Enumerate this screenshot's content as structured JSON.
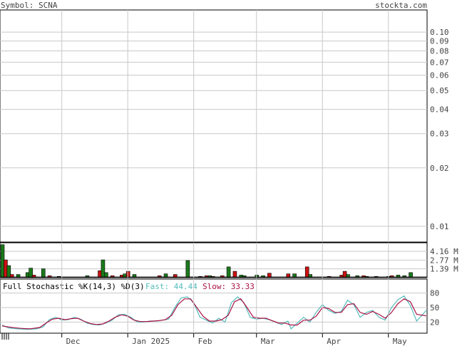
{
  "header": {
    "symbol_label": "Symbol: SCNA",
    "site": "stockta.com"
  },
  "colors": {
    "text": "#444444",
    "grid": "#c8c8c8",
    "frame": "#000000",
    "up_volume": "#1a7a1a",
    "down_volume": "#cc1111",
    "fast_line": "#55bbbb",
    "slow_line": "#aa1144",
    "volume_hline": "#333333"
  },
  "chart_data": [
    {
      "type": "line",
      "panel": "price",
      "scale": "log",
      "ylim": [
        0.0083,
        0.13
      ],
      "y_ticks": [
        "0.10",
        "0.09",
        "0.08",
        "0.07",
        "0.06",
        "0.05",
        "0.04",
        "0.03",
        "0.02",
        "0.01"
      ],
      "y_tick_values": [
        0.1,
        0.09,
        0.08,
        0.07,
        0.06,
        0.05,
        0.04,
        0.03,
        0.02,
        0.01
      ],
      "series": []
    },
    {
      "type": "bar",
      "panel": "volume",
      "y_ticks": [
        "4.16 M",
        "2.77 M",
        "1.39 M"
      ],
      "y_tick_values": [
        4.16,
        2.77,
        1.39
      ],
      "ylim": [
        0,
        5.5
      ],
      "bars": [
        {
          "d": 0,
          "v": 5.2,
          "c": "up"
        },
        {
          "d": 1,
          "v": 2.8,
          "c": "down"
        },
        {
          "d": 2,
          "v": 1.9,
          "c": "up"
        },
        {
          "d": 3,
          "v": 0.5,
          "c": "down"
        },
        {
          "d": 5,
          "v": 0.5,
          "c": "up"
        },
        {
          "d": 8,
          "v": 0.8,
          "c": "up"
        },
        {
          "d": 9,
          "v": 1.5,
          "c": "up"
        },
        {
          "d": 10,
          "v": 0.4,
          "c": "down"
        },
        {
          "d": 13,
          "v": 1.4,
          "c": "up"
        },
        {
          "d": 15,
          "v": 0.3,
          "c": "down"
        },
        {
          "d": 18,
          "v": 0.2,
          "c": "up"
        },
        {
          "d": 27,
          "v": 0.3,
          "c": "up"
        },
        {
          "d": 31,
          "v": 1.1,
          "c": "down"
        },
        {
          "d": 32,
          "v": 2.8,
          "c": "up"
        },
        {
          "d": 33,
          "v": 0.8,
          "c": "up"
        },
        {
          "d": 35,
          "v": 0.3,
          "c": "down"
        },
        {
          "d": 38,
          "v": 0.4,
          "c": "down"
        },
        {
          "d": 39,
          "v": 0.6,
          "c": "up"
        },
        {
          "d": 40,
          "v": 1.0,
          "c": "down"
        },
        {
          "d": 42,
          "v": 0.5,
          "c": "up"
        },
        {
          "d": 50,
          "v": 0.3,
          "c": "down"
        },
        {
          "d": 52,
          "v": 0.6,
          "c": "up"
        },
        {
          "d": 55,
          "v": 0.5,
          "c": "down"
        },
        {
          "d": 59,
          "v": 2.7,
          "c": "up"
        },
        {
          "d": 63,
          "v": 0.2,
          "c": "down"
        },
        {
          "d": 65,
          "v": 0.3,
          "c": "down"
        },
        {
          "d": 66,
          "v": 0.3,
          "c": "up"
        },
        {
          "d": 67,
          "v": 0.2,
          "c": "down"
        },
        {
          "d": 70,
          "v": 0.3,
          "c": "down"
        },
        {
          "d": 72,
          "v": 1.7,
          "c": "up"
        },
        {
          "d": 74,
          "v": 1.0,
          "c": "down"
        },
        {
          "d": 76,
          "v": 0.4,
          "c": "up"
        },
        {
          "d": 77,
          "v": 0.3,
          "c": "up"
        },
        {
          "d": 81,
          "v": 0.4,
          "c": "up"
        },
        {
          "d": 83,
          "v": 0.3,
          "c": "up"
        },
        {
          "d": 85,
          "v": 0.7,
          "c": "down"
        },
        {
          "d": 91,
          "v": 0.6,
          "c": "down"
        },
        {
          "d": 93,
          "v": 0.6,
          "c": "up"
        },
        {
          "d": 97,
          "v": 1.7,
          "c": "down"
        },
        {
          "d": 98,
          "v": 0.5,
          "c": "up"
        },
        {
          "d": 104,
          "v": 0.2,
          "c": "down"
        },
        {
          "d": 108,
          "v": 0.4,
          "c": "down"
        },
        {
          "d": 109,
          "v": 1.0,
          "c": "down"
        },
        {
          "d": 110,
          "v": 0.5,
          "c": "up"
        },
        {
          "d": 113,
          "v": 0.3,
          "c": "up"
        },
        {
          "d": 115,
          "v": 0.3,
          "c": "down"
        },
        {
          "d": 116,
          "v": 0.2,
          "c": "up"
        },
        {
          "d": 119,
          "v": 0.2,
          "c": "up"
        },
        {
          "d": 123,
          "v": 0.2,
          "c": "up"
        },
        {
          "d": 124,
          "v": 0.3,
          "c": "down"
        },
        {
          "d": 126,
          "v": 0.4,
          "c": "up"
        },
        {
          "d": 128,
          "v": 0.3,
          "c": "up"
        },
        {
          "d": 130,
          "v": 0.8,
          "c": "up"
        }
      ]
    },
    {
      "type": "line",
      "panel": "stochastic",
      "title": "Full Stochastic %K(14,3) %D(3)",
      "fast_label": "Fast: 44.44",
      "slow_label": "Slow: 33.33",
      "ylim": [
        0,
        100
      ],
      "y_ticks": [
        "80",
        "50",
        "20"
      ],
      "y_tick_values": [
        80,
        50,
        20
      ],
      "n_points": 136,
      "fast_keys": [
        [
          0,
          14
        ],
        [
          2,
          8
        ],
        [
          5,
          6
        ],
        [
          8,
          5
        ],
        [
          11,
          6
        ],
        [
          13,
          10
        ],
        [
          15,
          25
        ],
        [
          17,
          30
        ],
        [
          19,
          24
        ],
        [
          21,
          25
        ],
        [
          23,
          30
        ],
        [
          25,
          26
        ],
        [
          27,
          18
        ],
        [
          29,
          15
        ],
        [
          31,
          14
        ],
        [
          33,
          18
        ],
        [
          35,
          24
        ],
        [
          37,
          35
        ],
        [
          39,
          36
        ],
        [
          41,
          30
        ],
        [
          43,
          20
        ],
        [
          45,
          20
        ],
        [
          47,
          22
        ],
        [
          49,
          22
        ],
        [
          51,
          24
        ],
        [
          53,
          26
        ],
        [
          55,
          50
        ],
        [
          57,
          70
        ],
        [
          59,
          72
        ],
        [
          61,
          60
        ],
        [
          63,
          30
        ],
        [
          65,
          24
        ],
        [
          67,
          18
        ],
        [
          69,
          28
        ],
        [
          71,
          20
        ],
        [
          73,
          60
        ],
        [
          75,
          72
        ],
        [
          77,
          60
        ],
        [
          79,
          30
        ],
        [
          81,
          26
        ],
        [
          83,
          28
        ],
        [
          85,
          25
        ],
        [
          87,
          20
        ],
        [
          89,
          15
        ],
        [
          91,
          22
        ],
        [
          92,
          6
        ],
        [
          94,
          18
        ],
        [
          96,
          30
        ],
        [
          98,
          20
        ],
        [
          100,
          40
        ],
        [
          102,
          56
        ],
        [
          104,
          44
        ],
        [
          106,
          38
        ],
        [
          108,
          42
        ],
        [
          110,
          65
        ],
        [
          112,
          56
        ],
        [
          114,
          30
        ],
        [
          116,
          40
        ],
        [
          118,
          44
        ],
        [
          120,
          30
        ],
        [
          122,
          24
        ],
        [
          124,
          50
        ],
        [
          126,
          66
        ],
        [
          128,
          74
        ],
        [
          130,
          54
        ],
        [
          132,
          22
        ],
        [
          135,
          44
        ]
      ],
      "slow_keys": [
        [
          0,
          12
        ],
        [
          3,
          9
        ],
        [
          6,
          7
        ],
        [
          9,
          6
        ],
        [
          12,
          9
        ],
        [
          14,
          18
        ],
        [
          16,
          26
        ],
        [
          18,
          28
        ],
        [
          20,
          25
        ],
        [
          22,
          27
        ],
        [
          24,
          28
        ],
        [
          26,
          22
        ],
        [
          28,
          17
        ],
        [
          30,
          15
        ],
        [
          32,
          16
        ],
        [
          34,
          22
        ],
        [
          36,
          30
        ],
        [
          38,
          35
        ],
        [
          40,
          32
        ],
        [
          42,
          24
        ],
        [
          44,
          21
        ],
        [
          46,
          21
        ],
        [
          48,
          22
        ],
        [
          50,
          23
        ],
        [
          52,
          25
        ],
        [
          54,
          34
        ],
        [
          56,
          56
        ],
        [
          58,
          68
        ],
        [
          60,
          68
        ],
        [
          62,
          50
        ],
        [
          64,
          32
        ],
        [
          66,
          22
        ],
        [
          68,
          22
        ],
        [
          70,
          25
        ],
        [
          72,
          34
        ],
        [
          74,
          62
        ],
        [
          76,
          68
        ],
        [
          78,
          50
        ],
        [
          80,
          30
        ],
        [
          82,
          28
        ],
        [
          84,
          28
        ],
        [
          86,
          23
        ],
        [
          88,
          18
        ],
        [
          90,
          18
        ],
        [
          92,
          14
        ],
        [
          94,
          14
        ],
        [
          96,
          24
        ],
        [
          98,
          24
        ],
        [
          100,
          32
        ],
        [
          102,
          50
        ],
        [
          104,
          48
        ],
        [
          106,
          40
        ],
        [
          108,
          40
        ],
        [
          110,
          56
        ],
        [
          112,
          58
        ],
        [
          114,
          40
        ],
        [
          116,
          36
        ],
        [
          118,
          42
        ],
        [
          120,
          36
        ],
        [
          122,
          28
        ],
        [
          124,
          40
        ],
        [
          126,
          58
        ],
        [
          128,
          68
        ],
        [
          130,
          62
        ],
        [
          132,
          36
        ],
        [
          135,
          33
        ]
      ]
    }
  ],
  "x_axis": {
    "months": [
      {
        "label": "Dec",
        "d": 19
      },
      {
        "label": "Jan 2025",
        "d": 40
      },
      {
        "label": "Feb",
        "d": 61
      },
      {
        "label": "Mar",
        "d": 81
      },
      {
        "label": "Apr",
        "d": 102
      },
      {
        "label": "May",
        "d": 123
      }
    ]
  }
}
